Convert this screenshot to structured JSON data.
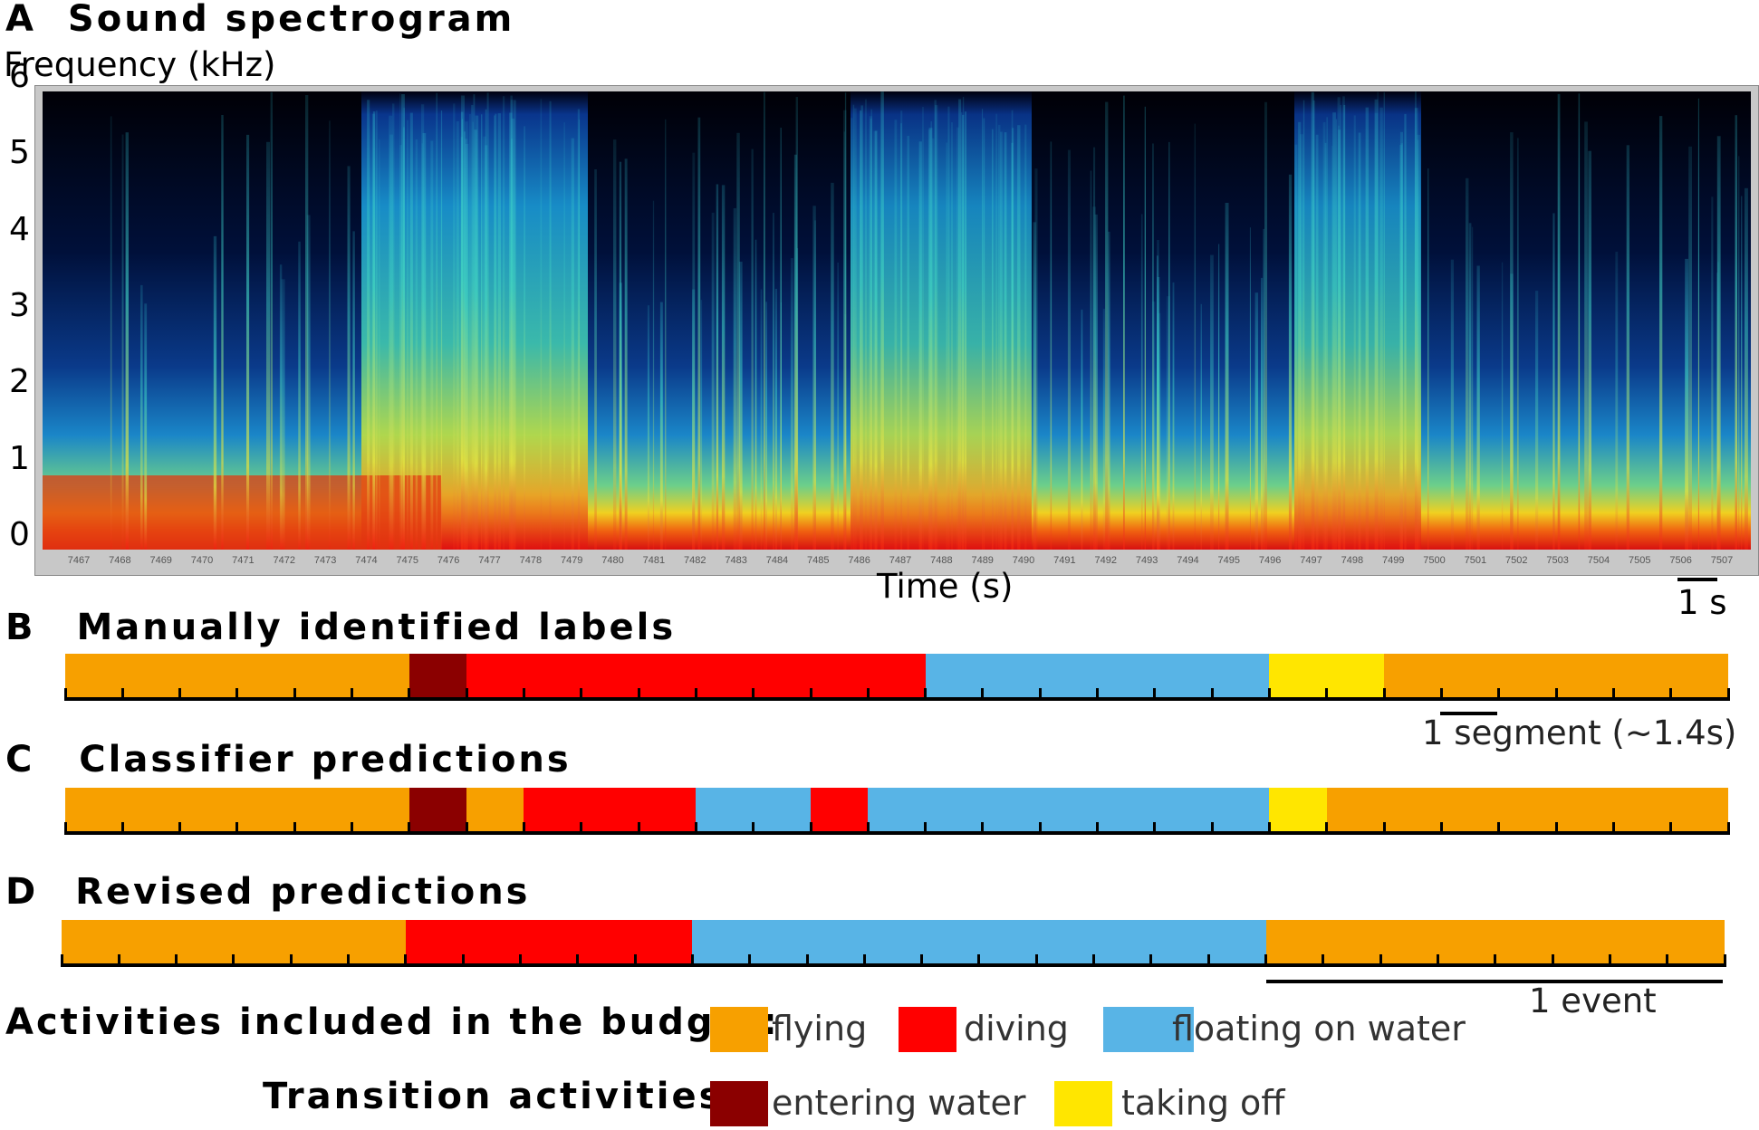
{
  "panels": {
    "a": {
      "letter": "A",
      "title": "Sound spectrogram"
    },
    "b": {
      "letter": "B",
      "title": "Manually identified labels"
    },
    "c": {
      "letter": "C",
      "title": "Classifier predictions"
    },
    "d": {
      "letter": "D",
      "title": "Revised predictions"
    }
  },
  "spectrogram": {
    "ylabel": "Frequency (kHz)",
    "xlabel": "Time (s)",
    "y_ticks": [
      "6",
      "5",
      "4",
      "3",
      "2",
      "1",
      "0"
    ],
    "time_ticks": [
      "7467",
      "7468",
      "7469",
      "7470",
      "7471",
      "7472",
      "7473",
      "7474",
      "7475",
      "7476",
      "7477",
      "7478",
      "7479",
      "7480",
      "7481",
      "7482",
      "7483",
      "7484",
      "7485",
      "7486",
      "7487",
      "7488",
      "7489",
      "7490",
      "7491",
      "7492",
      "7493",
      "7494",
      "7495",
      "7496",
      "7497",
      "7498",
      "7499",
      "7500",
      "7501",
      "7502",
      "7503",
      "7504",
      "7505",
      "7506",
      "7507"
    ],
    "scale_label": "1 s"
  },
  "segment_scale_label": "1 segment (~1.4s)",
  "event_scale_label": "1 event",
  "colors": {
    "flying": "#F7A000",
    "diving": "#FF0000",
    "floating": "#58B4E6",
    "entering": "#8B0000",
    "takeoff": "#FFE600"
  },
  "chart_data": [
    {
      "type": "table",
      "title": "Manually identified labels",
      "unit": "segments (~1.4 s each)",
      "segments": [
        {
          "label": "flying",
          "length": 6
        },
        {
          "label": "entering water",
          "length": 1
        },
        {
          "label": "diving",
          "length": 8
        },
        {
          "label": "floating on water",
          "length": 6
        },
        {
          "label": "taking off",
          "length": 2
        },
        {
          "label": "flying",
          "length": 6
        }
      ]
    },
    {
      "type": "table",
      "title": "Classifier predictions",
      "unit": "segments (~1.4 s each)",
      "segments": [
        {
          "label": "flying",
          "length": 6
        },
        {
          "label": "entering water",
          "length": 1
        },
        {
          "label": "flying",
          "length": 1
        },
        {
          "label": "diving",
          "length": 3
        },
        {
          "label": "floating on water",
          "length": 2
        },
        {
          "label": "diving",
          "length": 1
        },
        {
          "label": "floating on water",
          "length": 7
        },
        {
          "label": "taking off",
          "length": 1
        },
        {
          "label": "flying",
          "length": 7
        }
      ]
    },
    {
      "type": "table",
      "title": "Revised predictions",
      "unit": "segments (~1.4 s each)",
      "segments": [
        {
          "label": "flying",
          "length": 6
        },
        {
          "label": "diving",
          "length": 5
        },
        {
          "label": "floating on water",
          "length": 10
        },
        {
          "label": "flying",
          "length": 8
        }
      ]
    }
  ],
  "legend": {
    "budget_title": "Activities included in the budget:",
    "transition_title": "Transition activities:",
    "budget_items": [
      {
        "label": "flying",
        "color": "#F7A000"
      },
      {
        "label": "diving",
        "color": "#FF0000"
      },
      {
        "label": "floating on water",
        "color": "#58B4E6"
      }
    ],
    "transition_items": [
      {
        "label": "entering water",
        "color": "#8B0000"
      },
      {
        "label": "taking off",
        "color": "#FFE600"
      }
    ]
  }
}
